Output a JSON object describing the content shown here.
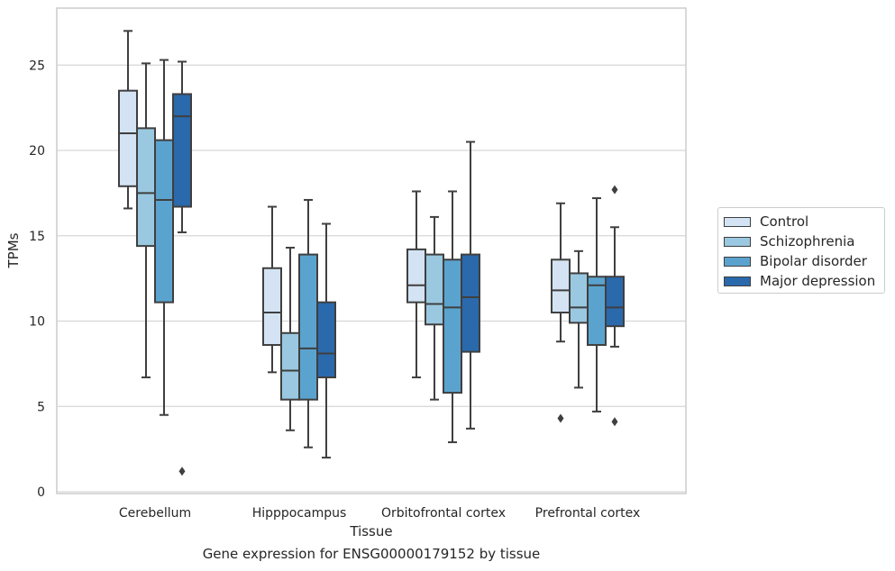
{
  "chart_data": {
    "type": "box",
    "title": "",
    "xlabel": "Tissue",
    "ylabel": "TPMs",
    "caption": "Gene expression for ENSG00000179152 by tissue",
    "ylim": [
      0,
      28
    ],
    "yticks": [
      0,
      5,
      10,
      15,
      20,
      25
    ],
    "grid": "horizontal",
    "legend_position": "right",
    "categories": [
      "Cerebellum",
      "Hipppocampus",
      "Orbitofrontal cortex",
      "Prefrontal cortex"
    ],
    "series": [
      {
        "name": "Control",
        "color": "#d3e3f3",
        "boxes": [
          {
            "whislo": 16.6,
            "q1": 17.9,
            "med": 21.0,
            "q3": 23.5,
            "whishi": 27.0,
            "fliers": []
          },
          {
            "whislo": 7.0,
            "q1": 8.6,
            "med": 10.5,
            "q3": 13.1,
            "whishi": 16.7,
            "fliers": []
          },
          {
            "whislo": 6.7,
            "q1": 11.1,
            "med": 12.1,
            "q3": 14.2,
            "whishi": 17.6,
            "fliers": []
          },
          {
            "whislo": 8.8,
            "q1": 10.5,
            "med": 11.8,
            "q3": 13.6,
            "whishi": 16.9,
            "fliers": [
              4.3
            ]
          }
        ]
      },
      {
        "name": "Schizophrenia",
        "color": "#9ac8e0",
        "boxes": [
          {
            "whislo": 6.7,
            "q1": 14.4,
            "med": 17.5,
            "q3": 21.3,
            "whishi": 25.1,
            "fliers": []
          },
          {
            "whislo": 3.6,
            "q1": 5.4,
            "med": 7.1,
            "q3": 9.3,
            "whishi": 14.3,
            "fliers": []
          },
          {
            "whislo": 5.4,
            "q1": 9.8,
            "med": 11.0,
            "q3": 13.9,
            "whishi": 16.1,
            "fliers": []
          },
          {
            "whislo": 6.1,
            "q1": 9.9,
            "med": 10.8,
            "q3": 12.8,
            "whishi": 14.1,
            "fliers": []
          }
        ]
      },
      {
        "name": "Bipolar disorder",
        "color": "#5ba3cf",
        "boxes": [
          {
            "whislo": 4.5,
            "q1": 11.1,
            "med": 17.1,
            "q3": 20.6,
            "whishi": 25.3,
            "fliers": []
          },
          {
            "whislo": 2.6,
            "q1": 5.4,
            "med": 8.4,
            "q3": 13.9,
            "whishi": 17.1,
            "fliers": []
          },
          {
            "whislo": 2.9,
            "q1": 5.8,
            "med": 10.8,
            "q3": 13.6,
            "whishi": 17.6,
            "fliers": []
          },
          {
            "whislo": 4.7,
            "q1": 8.6,
            "med": 12.1,
            "q3": 12.6,
            "whishi": 17.2,
            "fliers": []
          }
        ]
      },
      {
        "name": "Major depression",
        "color": "#2a69ac",
        "boxes": [
          {
            "whislo": 15.2,
            "q1": 16.7,
            "med": 22.0,
            "q3": 23.3,
            "whishi": 25.2,
            "fliers": [
              1.2
            ]
          },
          {
            "whislo": 2.0,
            "q1": 6.7,
            "med": 8.1,
            "q3": 11.1,
            "whishi": 15.7,
            "fliers": []
          },
          {
            "whislo": 3.7,
            "q1": 8.2,
            "med": 11.4,
            "q3": 13.9,
            "whishi": 20.5,
            "fliers": []
          },
          {
            "whislo": 8.5,
            "q1": 9.7,
            "med": 10.8,
            "q3": 12.6,
            "whishi": 15.5,
            "fliers": [
              4.1,
              17.7
            ]
          }
        ]
      }
    ]
  }
}
